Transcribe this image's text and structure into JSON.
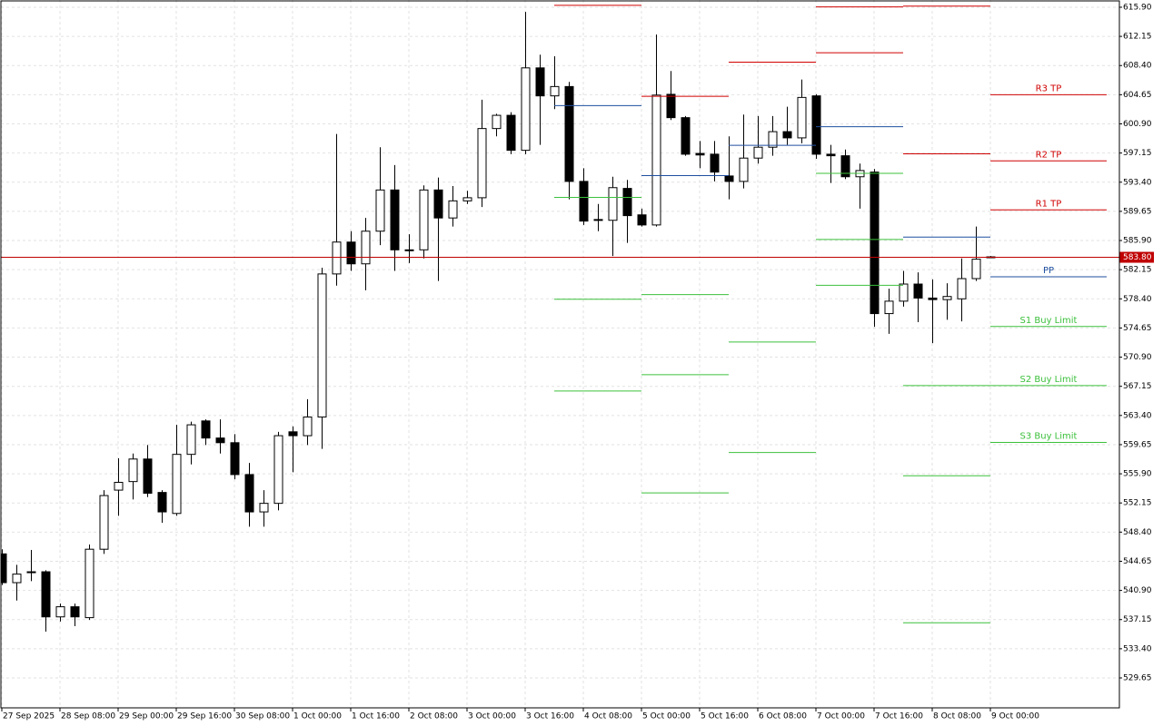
{
  "chart_data": {
    "type": "candlestick",
    "categories": [
      "27 Sep 2025",
      null,
      null,
      null,
      "28 Sep 08:00",
      null,
      null,
      null,
      "29 Sep 00:00",
      null,
      null,
      null,
      "29 Sep 16:00",
      null,
      null,
      null,
      "30 Sep 08:00",
      null,
      null,
      null,
      "1 Oct 00:00",
      null,
      null,
      null,
      "1 Oct 16:00",
      null,
      null,
      null,
      "2 Oct 08:00",
      null,
      null,
      null,
      "3 Oct 00:00",
      null,
      null,
      null,
      "3 Oct 16:00",
      null,
      null,
      null,
      "4 Oct 08:00",
      null,
      null,
      null,
      "5 Oct 00:00",
      null,
      null,
      null,
      "5 Oct 16:00",
      null,
      null,
      null,
      "6 Oct 08:00",
      null,
      null,
      null,
      "7 Oct 00:00",
      null,
      null,
      null,
      "7 Oct 16:00",
      null,
      null,
      null,
      "8 Oct 08:00",
      null,
      null,
      null,
      "9 Oct 00:00"
    ],
    "open": [
      545.6,
      541.9,
      543.3,
      543.3,
      537.5,
      538.8,
      537.4,
      546.2,
      553.8,
      554.9,
      557.8,
      553.5,
      550.8,
      558.4,
      562.7,
      560.5,
      559.9,
      555.8,
      551.0,
      552.1,
      561.3,
      560.8,
      563.2,
      581.6,
      585.7,
      582.9,
      587.1,
      592.4,
      584.7,
      584.7,
      592.4,
      588.8,
      591.0,
      591.4,
      600.3,
      602.0,
      597.5,
      608.1,
      604.5,
      605.7,
      593.5,
      588.6,
      588.5,
      592.6,
      589.2,
      587.9,
      604.7,
      601.7,
      597.1,
      597.0,
      594.2,
      593.5,
      596.5,
      597.9,
      599.9,
      599.1,
      604.5,
      597.0,
      596.8,
      594.1,
      594.7,
      576.5,
      578.1,
      580.3,
      578.5,
      578.3,
      578.4,
      581.0,
      583.8
    ],
    "high": [
      546.2,
      544.2,
      546.1,
      543.5,
      539.2,
      539.2,
      546.8,
      553.8,
      557.9,
      558.5,
      559.6,
      553.8,
      562.2,
      562.6,
      562.9,
      562.9,
      561.0,
      557.3,
      553.8,
      561.3,
      562.0,
      565.5,
      582.4,
      599.6,
      587.1,
      588.8,
      597.9,
      595.6,
      586.7,
      593.0,
      594.0,
      592.9,
      592.3,
      604.0,
      602.2,
      602.4,
      615.3,
      609.8,
      609.6,
      606.3,
      595.2,
      590.6,
      594.1,
      593.7,
      590.0,
      612.4,
      607.7,
      601.9,
      598.7,
      598.7,
      599.3,
      602.1,
      601.9,
      601.9,
      603.1,
      606.6,
      604.7,
      598.2,
      597.6,
      595.8,
      595.1,
      579.7,
      582.0,
      581.8,
      580.9,
      580.4,
      583.6,
      587.7,
      583.9
    ],
    "low": [
      541.6,
      539.6,
      542.1,
      535.6,
      536.9,
      536.3,
      537.1,
      545.6,
      550.5,
      552.6,
      552.9,
      549.6,
      550.5,
      557.1,
      559.6,
      558.5,
      555.2,
      549.1,
      549.1,
      551.2,
      556.1,
      559.6,
      559.1,
      580.1,
      582.0,
      579.5,
      585.3,
      582.0,
      583.0,
      583.6,
      580.7,
      587.7,
      590.6,
      590.2,
      599.3,
      597.0,
      597.0,
      598.2,
      602.8,
      591.2,
      587.9,
      587.1,
      583.9,
      585.6,
      587.7,
      587.7,
      601.4,
      596.8,
      595.2,
      593.5,
      591.2,
      592.6,
      595.8,
      596.8,
      598.2,
      598.4,
      596.4,
      593.3,
      593.8,
      590.0,
      574.8,
      573.9,
      577.4,
      575.4,
      572.7,
      575.7,
      575.5,
      580.7,
      583.7
    ],
    "close": [
      541.9,
      543.0,
      543.2,
      537.5,
      538.8,
      537.5,
      546.2,
      553.1,
      554.8,
      557.8,
      553.4,
      551.0,
      558.4,
      562.2,
      560.5,
      559.9,
      555.8,
      551.0,
      552.1,
      560.8,
      560.8,
      563.2,
      581.6,
      585.7,
      582.9,
      587.1,
      592.4,
      584.7,
      584.6,
      592.4,
      588.8,
      591.0,
      591.4,
      600.3,
      602.0,
      597.5,
      608.1,
      604.5,
      605.7,
      593.5,
      588.4,
      588.5,
      592.7,
      589.1,
      587.9,
      604.6,
      601.7,
      597.0,
      596.9,
      594.7,
      593.5,
      596.5,
      597.9,
      599.9,
      599.1,
      604.3,
      597.0,
      596.8,
      594.1,
      594.9,
      576.5,
      578.1,
      580.3,
      578.5,
      578.3,
      578.7,
      581.0,
      583.5,
      583.8
    ],
    "levels": [
      {
        "name": "R3 TP",
        "color": "#d00000",
        "values": [
          null,
          null,
          null,
          null,
          null,
          604.7
        ]
      },
      {
        "name": "R2 TP",
        "color": "#d00000",
        "values": [
          null,
          null,
          null,
          616.0,
          616.1,
          596.2
        ]
      },
      {
        "name": "R1 TP",
        "color": "#d00000",
        "values": [
          616.2,
          604.5,
          608.9,
          610.1,
          597.1,
          589.9
        ]
      },
      {
        "name": "PP",
        "color": "#1f4f9f",
        "values": [
          603.3,
          594.3,
          598.2,
          600.6,
          586.4,
          581.3
        ]
      },
      {
        "name": "S1 Buy Limit",
        "color": "#3cc03c",
        "values": [
          591.5,
          579.0,
          583.8,
          594.6,
          567.3,
          574.9
        ]
      },
      {
        "name": "S2 Buy Limit",
        "color": "#3cc03c",
        "values": [
          578.4,
          568.7,
          572.9,
          586.1,
          555.7,
          567.3
        ]
      },
      {
        "name": "S3 Buy Limit",
        "color": "#3cc03c",
        "values": [
          566.6,
          553.5,
          558.7,
          580.2,
          536.8,
          560.0
        ]
      }
    ],
    "current": {
      "value": 583.8,
      "label": "583.80"
    },
    "current_color": "#c00000",
    "ylim": [
      525.8,
      616.83
    ],
    "yticks": [
      {
        "value": 615.9,
        "label": "615.90"
      },
      {
        "value": 612.15,
        "label": "612.15"
      },
      {
        "value": 608.4,
        "label": "608.40"
      },
      {
        "value": 604.65,
        "label": "604.65"
      },
      {
        "value": 600.9,
        "label": "600.90"
      },
      {
        "value": 597.15,
        "label": "597.15"
      },
      {
        "value": 593.4,
        "label": "593.40"
      },
      {
        "value": 589.65,
        "label": "589.65"
      },
      {
        "value": 585.9,
        "label": "585.90"
      },
      {
        "value": 582.15,
        "label": "582.15"
      },
      {
        "value": 578.4,
        "label": "578.40"
      },
      {
        "value": 574.65,
        "label": "574.65"
      },
      {
        "value": 570.9,
        "label": "570.90"
      },
      {
        "value": 567.15,
        "label": "567.15"
      },
      {
        "value": 563.4,
        "label": "563.40"
      },
      {
        "value": 559.65,
        "label": "559.65"
      },
      {
        "value": 555.9,
        "label": "555.90"
      },
      {
        "value": 552.15,
        "label": "552.15"
      },
      {
        "value": 548.4,
        "label": "548.40"
      },
      {
        "value": 544.65,
        "label": "544.65"
      },
      {
        "value": 540.9,
        "label": "540.90"
      },
      {
        "value": 537.15,
        "label": "537.15"
      },
      {
        "value": 533.4,
        "label": "533.40"
      },
      {
        "value": 529.65,
        "label": "529.65"
      }
    ],
    "grid": true
  }
}
